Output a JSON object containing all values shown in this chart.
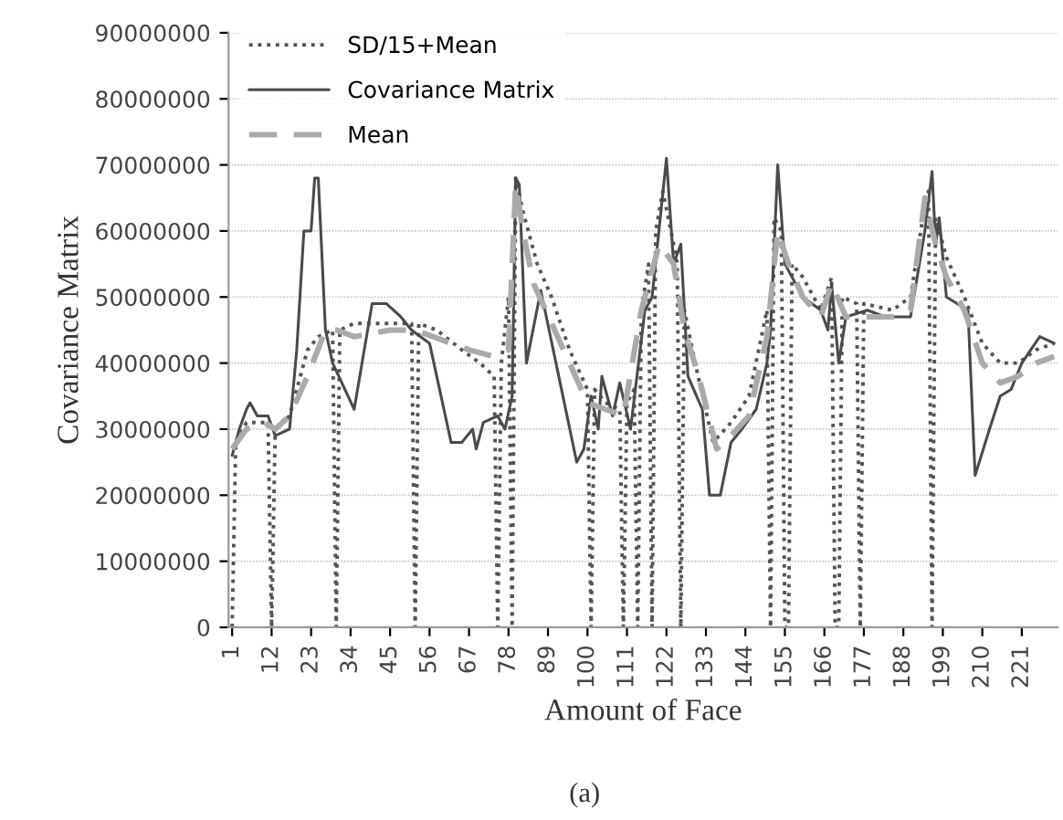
{
  "chart_data": {
    "type": "line",
    "xlabel": "Amount of Face",
    "ylabel": "Covariance Matrix",
    "annotations": [
      "(a)"
    ],
    "xlim": [
      0,
      231
    ],
    "xticks": [
      1,
      12,
      23,
      34,
      45,
      56,
      67,
      78,
      89,
      100,
      111,
      122,
      133,
      144,
      155,
      166,
      177,
      188,
      199,
      210,
      221
    ],
    "ylim": [
      0,
      90000000
    ],
    "yticks": [
      0,
      10000000,
      20000000,
      30000000,
      40000000,
      50000000,
      60000000,
      70000000,
      80000000,
      90000000
    ],
    "grid": "y",
    "legend": "top left",
    "marker": "none",
    "series": [
      {
        "name": "SD/15+Mean",
        "color": "#555555",
        "line_style": "dotted",
        "x": [
          1,
          2,
          5,
          10,
          11,
          12,
          13,
          17,
          22,
          25,
          29,
          30,
          31,
          35,
          40,
          45,
          51,
          52,
          53,
          58,
          65,
          70,
          74,
          75,
          76,
          78,
          79,
          80,
          82,
          86,
          90,
          95,
          100,
          101,
          102,
          105,
          109,
          110,
          111,
          113,
          114,
          115,
          117,
          118,
          119,
          121,
          124,
          125,
          126,
          127,
          130,
          135,
          140,
          145,
          150,
          151,
          152,
          154,
          155,
          156,
          157,
          160,
          165,
          168,
          169,
          170,
          171,
          175,
          176,
          177,
          185,
          190,
          194,
          195,
          196,
          197,
          200,
          205,
          210,
          215,
          220,
          225,
          230
        ],
        "values": [
          0,
          28000000,
          31000000,
          31000000,
          31000000,
          0,
          30000000,
          32000000,
          42000000,
          44000000,
          45000000,
          0,
          45000000,
          46000000,
          46000000,
          46000000,
          46000000,
          0,
          46000000,
          45000000,
          42000000,
          40000000,
          38000000,
          0,
          40000000,
          50000000,
          0,
          68000000,
          63000000,
          55000000,
          50000000,
          42000000,
          36000000,
          0,
          36000000,
          34000000,
          33000000,
          0,
          34000000,
          36000000,
          0,
          48000000,
          55000000,
          0,
          60000000,
          66000000,
          58000000,
          55000000,
          0,
          48000000,
          40000000,
          28000000,
          31000000,
          35000000,
          48000000,
          0,
          62000000,
          60000000,
          0,
          0,
          55000000,
          53000000,
          48000000,
          53000000,
          0,
          0,
          50000000,
          49000000,
          0,
          49000000,
          48000000,
          50000000,
          64000000,
          66000000,
          0,
          62000000,
          56000000,
          50000000,
          43000000,
          40000000,
          40000000,
          42000000,
          43000000
        ]
      },
      {
        "name": "Covariance Matrix",
        "color": "#4a4a4a",
        "line_style": "solid",
        "x": [
          1,
          3,
          5,
          6,
          8,
          11,
          13,
          17,
          19,
          21,
          23,
          24,
          25,
          27,
          29,
          35,
          40,
          44,
          48,
          51,
          56,
          62,
          65,
          68,
          69,
          71,
          75,
          77,
          79,
          80,
          81,
          83,
          87,
          92,
          97,
          99,
          101,
          103,
          104,
          107,
          109,
          112,
          116,
          118,
          122,
          124,
          126,
          128,
          132,
          134,
          137,
          140,
          143,
          147,
          150,
          151,
          153,
          155,
          160,
          165,
          167,
          168,
          170,
          172,
          178,
          183,
          190,
          194,
          196,
          197,
          198,
          200,
          206,
          208,
          212,
          215,
          218,
          221,
          226,
          230
        ],
        "values": [
          26000000,
          30000000,
          33000000,
          34000000,
          32000000,
          32000000,
          29000000,
          30000000,
          42000000,
          60000000,
          60000000,
          68000000,
          68000000,
          45000000,
          40000000,
          33000000,
          49000000,
          49000000,
          47000000,
          45000000,
          43000000,
          28000000,
          28000000,
          30000000,
          27000000,
          31000000,
          32000000,
          30000000,
          35000000,
          68000000,
          67000000,
          40000000,
          51000000,
          38000000,
          25000000,
          27000000,
          35000000,
          30000000,
          38000000,
          32000000,
          37000000,
          30000000,
          48000000,
          50000000,
          71000000,
          55000000,
          58000000,
          38000000,
          33000000,
          20000000,
          20000000,
          28000000,
          30000000,
          33000000,
          40000000,
          45000000,
          70000000,
          55000000,
          50000000,
          48000000,
          45000000,
          52000000,
          40000000,
          47000000,
          48000000,
          47000000,
          47000000,
          60000000,
          69000000,
          58000000,
          62000000,
          50000000,
          48000000,
          23000000,
          30000000,
          35000000,
          36000000,
          40000000,
          44000000,
          43000000
        ]
      },
      {
        "name": "Mean",
        "color": "#aaaaaa",
        "line_style": "dashed",
        "x": [
          1,
          5,
          10,
          13,
          17,
          22,
          27,
          30,
          35,
          45,
          52,
          57,
          62,
          67,
          74,
          78,
          80,
          82,
          85,
          90,
          95,
          100,
          105,
          110,
          115,
          120,
          124,
          127,
          131,
          136,
          140,
          145,
          150,
          153,
          156,
          160,
          165,
          168,
          172,
          178,
          185,
          190,
          194,
          197,
          200,
          205,
          210,
          215,
          220,
          225,
          230
        ],
        "values": [
          27000000,
          30000000,
          31000000,
          30000000,
          32000000,
          38000000,
          45000000,
          45000000,
          44000000,
          45000000,
          45000000,
          44000000,
          43000000,
          42000000,
          41000000,
          42000000,
          67000000,
          60000000,
          52000000,
          46000000,
          40000000,
          34000000,
          33000000,
          32000000,
          48000000,
          58000000,
          55000000,
          45000000,
          38000000,
          27000000,
          29000000,
          32000000,
          44000000,
          60000000,
          55000000,
          50000000,
          47000000,
          52000000,
          47000000,
          47000000,
          47000000,
          48000000,
          65000000,
          58000000,
          53000000,
          48000000,
          40000000,
          37000000,
          38000000,
          40000000,
          41000000
        ]
      }
    ]
  }
}
